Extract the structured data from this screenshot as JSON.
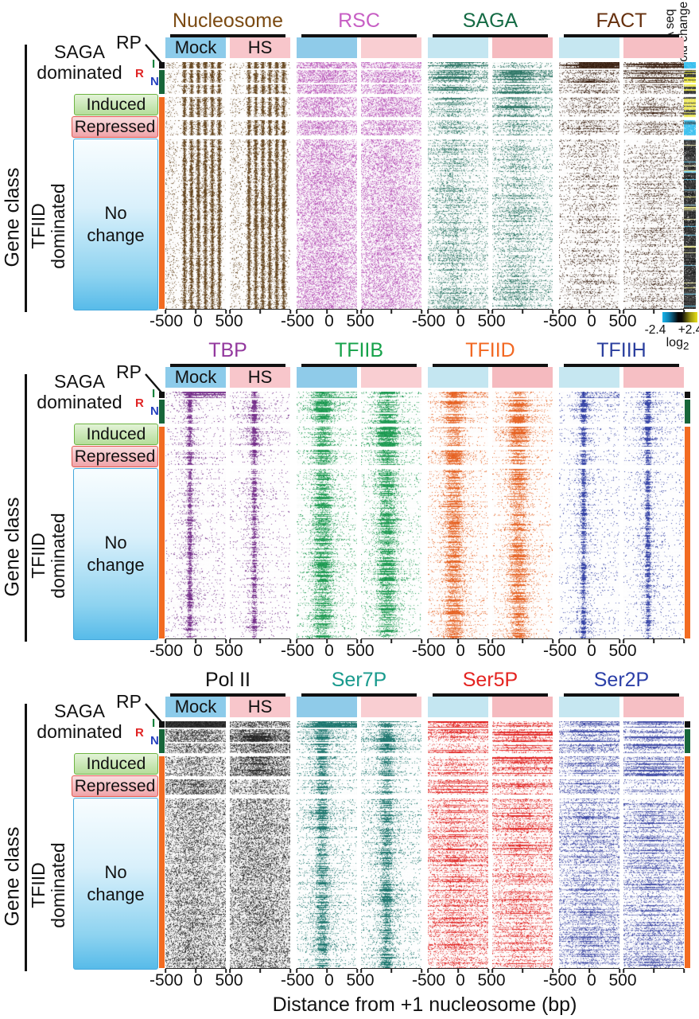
{
  "figure": {
    "legend": {
      "gene_class": "Gene class",
      "saga_line1": "SAGA",
      "saga_line2": "dominated",
      "rp": "RP",
      "sub_r": "R",
      "sub_i": "I",
      "sub_n": "N",
      "induced": "Induced",
      "repressed": "Repressed",
      "no_change_line1": "No",
      "no_change_line2": "change",
      "tfiid_line1": "TFIID",
      "tfiid_line2": "dominated"
    },
    "conditions": {
      "mock": "Mock",
      "hs": "HS"
    },
    "axis": {
      "ticks": [
        "-500",
        "0",
        "500"
      ],
      "xlabel": "Distance from +1 nucleosome (bp)"
    },
    "rna_col": {
      "line1": "RNA seq",
      "line2": "fold change"
    },
    "colorbar": {
      "min_label": "-2.4",
      "max_label": "+2.4",
      "unit": "log",
      "unit_sub": "2",
      "colors": [
        "#18B5EC",
        "#070707",
        "#E8E11A"
      ]
    },
    "class_strip_colors": {
      "rp": "#111111",
      "saga": "#17663A",
      "tfiid": "#F26B21"
    },
    "condition_bar_colors": {
      "mock": [
        "#8CCBEA",
        "#8FCBE9",
        "#C4E6F1",
        "#C6E7F1"
      ],
      "hs": [
        "#F8C6CB",
        "#F9CED2",
        "#F5BABF",
        "#F6BFC4"
      ]
    },
    "rows": [
      {
        "factors": [
          {
            "name": "Nucleosome",
            "label_color": "#7B4A12",
            "heat_color": "#5C3A10",
            "pattern": "stripes",
            "boost_mock": [
              1.3,
              1.0,
              1.0,
              1.0,
              1.0,
              1.0
            ],
            "boost_hs": [
              1.2,
              1.0,
              1.0,
              1.0,
              1.0,
              1.0
            ]
          },
          {
            "name": "RSC",
            "label_color": "#C75EC4",
            "heat_color": "#B44CB4",
            "pattern": "diffuse",
            "boost_mock": [
              1.3,
              1.2,
              1.1,
              1.0,
              1.0,
              0.95
            ],
            "boost_hs": [
              1.1,
              1.1,
              1.0,
              1.0,
              0.95,
              0.85
            ]
          },
          {
            "name": "SAGA",
            "label_color": "#156B45",
            "heat_color": "#23705F",
            "pattern": "diffuse2",
            "boost_mock": [
              2.0,
              1.9,
              1.5,
              1.1,
              1.1,
              0.75
            ],
            "boost_hs": [
              1.2,
              2.1,
              1.7,
              1.4,
              0.9,
              0.75
            ]
          },
          {
            "name": "FACT",
            "label_color": "#66300E",
            "heat_color": "#301505",
            "pattern": "fact",
            "boost_mock": [
              6.0,
              2.2,
              1.8,
              1.4,
              1.4,
              1.0
            ],
            "boost_hs": [
              4.0,
              3.5,
              2.8,
              2.0,
              1.5,
              1.1
            ]
          }
        ]
      },
      {
        "factors": [
          {
            "name": "TBP",
            "label_color": "#93399E",
            "heat_color": "#6D2383",
            "pattern": "line",
            "boost_mock": [
              2.2,
              1.6,
              1.3,
              1.2,
              1.5,
              1.0
            ],
            "boost_hs": [
              1.2,
              1.8,
              1.5,
              1.6,
              1.0,
              0.95
            ]
          },
          {
            "name": "TFIIB",
            "label_color": "#16A24A",
            "heat_color": "#0F9447",
            "pattern": "column",
            "boost_mock": [
              2.0,
              1.5,
              1.3,
              1.2,
              1.4,
              1.0
            ],
            "boost_hs": [
              1.2,
              1.7,
              1.5,
              1.6,
              1.0,
              1.0
            ]
          },
          {
            "name": "TFIID",
            "label_color": "#F26822",
            "heat_color": "#E55A17",
            "pattern": "column",
            "boost_mock": [
              2.2,
              1.5,
              1.3,
              1.1,
              1.4,
              1.0
            ],
            "boost_hs": [
              1.1,
              1.6,
              1.4,
              1.5,
              0.9,
              0.95
            ]
          },
          {
            "name": "TFIIH",
            "label_color": "#2B3F9E",
            "heat_color": "#2736A0",
            "pattern": "line",
            "boost_mock": [
              2.0,
              1.5,
              1.2,
              1.1,
              1.3,
              1.0
            ],
            "boost_hs": [
              1.2,
              1.6,
              1.4,
              1.5,
              0.9,
              0.95
            ]
          }
        ]
      },
      {
        "factors": [
          {
            "name": "Pol II",
            "label_color": "#111111",
            "heat_color": "#1A1A1A",
            "pattern": "grain",
            "boost_mock": [
              3.5,
              1.6,
              1.2,
              1.0,
              1.4,
              1.0
            ],
            "boost_hs": [
              1.6,
              1.9,
              1.6,
              1.7,
              0.9,
              1.05
            ]
          },
          {
            "name": "Ser7P",
            "label_color": "#189A8D",
            "heat_color": "#0F6E66",
            "pattern": "columnstreak",
            "boost_mock": [
              3.0,
              1.6,
              1.2,
              1.0,
              1.3,
              1.0
            ],
            "boost_hs": [
              1.8,
              1.9,
              1.6,
              1.6,
              0.9,
              1.05
            ]
          },
          {
            "name": "Ser5P",
            "label_color": "#E42320",
            "heat_color": "#E01816",
            "pattern": "bodystreak",
            "boost_mock": [
              2.6,
              1.5,
              1.2,
              1.0,
              1.3,
              1.0
            ],
            "boost_hs": [
              1.5,
              1.8,
              1.5,
              1.7,
              0.95,
              1.1
            ]
          },
          {
            "name": "Ser2P",
            "label_color": "#2B3FA8",
            "heat_color": "#333FA0",
            "pattern": "bodystreak",
            "boost_mock": [
              2.0,
              1.4,
              1.2,
              1.0,
              1.2,
              1.0
            ],
            "boost_hs": [
              1.3,
              1.5,
              1.4,
              1.5,
              0.9,
              1.05
            ]
          }
        ]
      }
    ]
  },
  "chart_data": {
    "type": "heatmap",
    "xlabel": "Distance from +1 nucleosome (bp)",
    "x_ticks": [
      -500,
      0,
      500
    ],
    "conditions": [
      "Mock",
      "HS"
    ],
    "panel_rows": [
      [
        "Nucleosome",
        "RSC",
        "SAGA",
        "FACT"
      ],
      [
        "TBP",
        "TFIIB",
        "TFIID",
        "TFIIH"
      ],
      [
        "Pol II",
        "Ser7P",
        "Ser5P",
        "Ser2P"
      ]
    ],
    "gene_classes": [
      "RP",
      "SAGA dominated (subclasses I, N, R)",
      "Induced",
      "Repressed",
      "No change (TFIID dominated)"
    ],
    "sidebar_heatmap": {
      "label": "RNA seq fold change",
      "scale": "log2",
      "min": -2.4,
      "max": 2.4,
      "colormap": [
        "cyan (down)",
        "black (0)",
        "yellow (up)"
      ],
      "band_summary": {
        "RP": "strong down (cyan)",
        "SAGA dominated": "mostly up (yellow/black mix)",
        "Induced": "up (yellow)",
        "Repressed": "down (cyan)",
        "No change": "near zero (black)"
      }
    }
  }
}
